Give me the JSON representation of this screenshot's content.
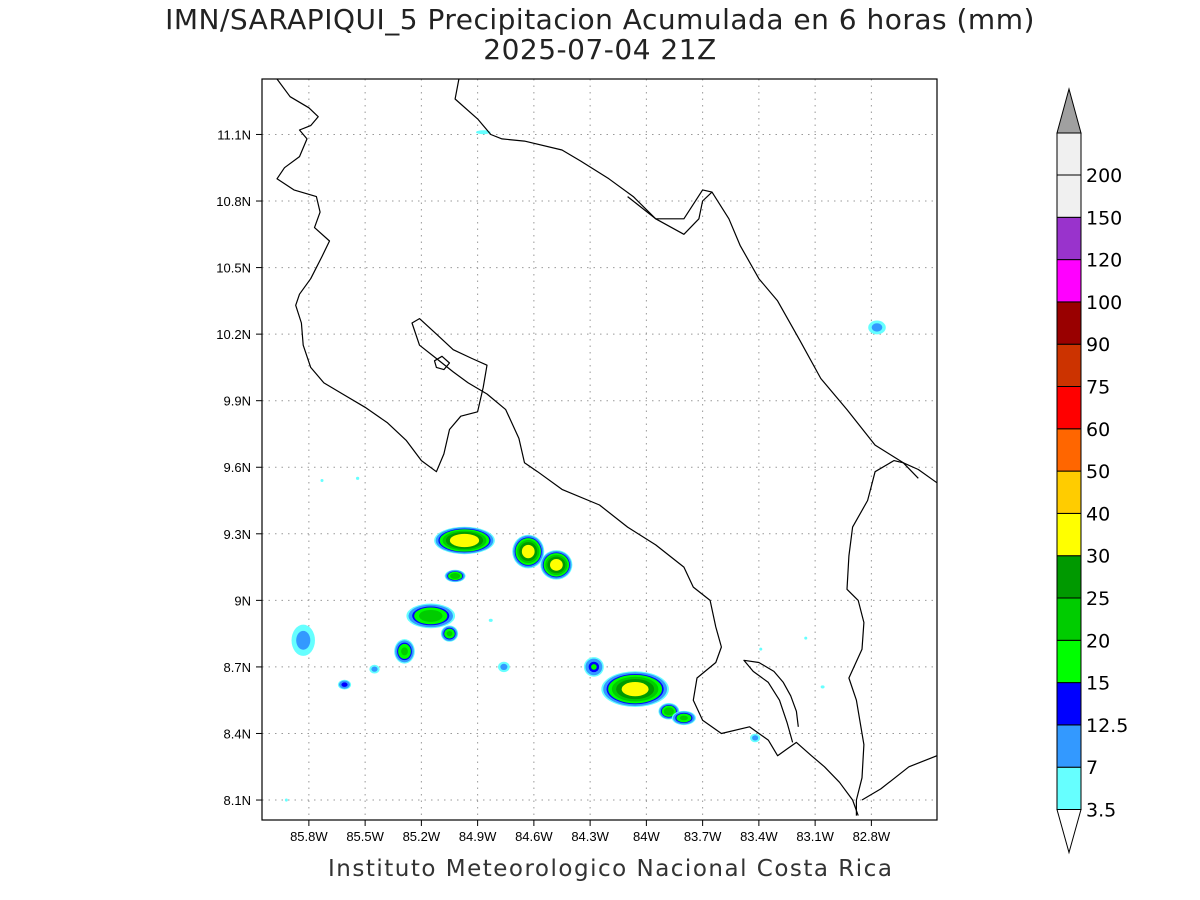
{
  "title": {
    "line1": "IMN/SARAPIQUI_5 Precipitacion Acumulada en 6 horas (mm)",
    "line2": "2025-07-04 21Z"
  },
  "footer": "Instituto Meteorologico Nacional Costa Rica",
  "map": {
    "lon_range": [
      -86.05,
      -82.45
    ],
    "lat_range": [
      8.01,
      11.35
    ],
    "x_ticks": [
      {
        "lon": -85.8,
        "label": "85.8W"
      },
      {
        "lon": -85.5,
        "label": "85.5W"
      },
      {
        "lon": -85.2,
        "label": "85.2W"
      },
      {
        "lon": -84.9,
        "label": "84.9W"
      },
      {
        "lon": -84.6,
        "label": "84.6W"
      },
      {
        "lon": -84.3,
        "label": "84.3W"
      },
      {
        "lon": -84.0,
        "label": "84W"
      },
      {
        "lon": -83.7,
        "label": "83.7W"
      },
      {
        "lon": -83.4,
        "label": "83.4W"
      },
      {
        "lon": -83.1,
        "label": "83.1W"
      },
      {
        "lon": -82.8,
        "label": "82.8W"
      }
    ],
    "y_ticks": [
      {
        "lat": 8.1,
        "label": "8.1N"
      },
      {
        "lat": 8.4,
        "label": "8.4N"
      },
      {
        "lat": 8.7,
        "label": "8.7N"
      },
      {
        "lat": 9.0,
        "label": "9N"
      },
      {
        "lat": 9.3,
        "label": "9.3N"
      },
      {
        "lat": 9.6,
        "label": "9.6N"
      },
      {
        "lat": 9.9,
        "label": "9.9N"
      },
      {
        "lat": 10.2,
        "label": "10.2N"
      },
      {
        "lat": 10.5,
        "label": "10.5N"
      },
      {
        "lat": 10.8,
        "label": "10.8N"
      },
      {
        "lat": 11.1,
        "label": "11.1N"
      }
    ],
    "grid": true,
    "coastline": [
      [
        -85.97,
        11.35
      ],
      [
        -85.9,
        11.27
      ],
      [
        -85.8,
        11.22
      ],
      [
        -85.75,
        11.18
      ],
      [
        -85.79,
        11.14
      ],
      [
        -85.85,
        11.12
      ],
      [
        -85.81,
        11.08
      ],
      [
        -85.85,
        11.0
      ],
      [
        -85.93,
        10.95
      ],
      [
        -85.97,
        10.9
      ],
      [
        -85.88,
        10.85
      ],
      [
        -85.76,
        10.82
      ],
      [
        -85.74,
        10.75
      ],
      [
        -85.77,
        10.68
      ],
      [
        -85.69,
        10.62
      ],
      [
        -85.73,
        10.55
      ],
      [
        -85.79,
        10.45
      ],
      [
        -85.85,
        10.38
      ],
      [
        -85.87,
        10.33
      ],
      [
        -85.84,
        10.25
      ],
      [
        -85.83,
        10.15
      ],
      [
        -85.79,
        10.05
      ],
      [
        -85.72,
        9.98
      ],
      [
        -85.62,
        9.93
      ],
      [
        -85.5,
        9.87
      ],
      [
        -85.38,
        9.8
      ],
      [
        -85.28,
        9.72
      ],
      [
        -85.2,
        9.63
      ],
      [
        -85.12,
        9.58
      ],
      [
        -85.08,
        9.66
      ],
      [
        -85.05,
        9.77
      ],
      [
        -84.99,
        9.83
      ],
      [
        -84.9,
        9.85
      ],
      [
        -84.87,
        9.96
      ],
      [
        -84.85,
        10.06
      ],
      [
        -84.93,
        10.09
      ],
      [
        -85.03,
        10.13
      ],
      [
        -85.12,
        10.2
      ],
      [
        -85.21,
        10.27
      ],
      [
        -85.25,
        10.25
      ],
      [
        -85.21,
        10.15
      ],
      [
        -85.12,
        10.09
      ],
      [
        -85.03,
        10.03
      ],
      [
        -84.95,
        9.98
      ],
      [
        -84.85,
        9.93
      ],
      [
        -84.75,
        9.86
      ],
      [
        -84.68,
        9.73
      ],
      [
        -84.65,
        9.62
      ],
      [
        -84.58,
        9.58
      ],
      [
        -84.45,
        9.5
      ],
      [
        -84.25,
        9.43
      ],
      [
        -84.1,
        9.33
      ],
      [
        -83.95,
        9.25
      ],
      [
        -83.8,
        9.15
      ],
      [
        -83.75,
        9.06
      ],
      [
        -83.66,
        9.0
      ],
      [
        -83.63,
        8.88
      ],
      [
        -83.6,
        8.79
      ],
      [
        -83.63,
        8.72
      ],
      [
        -83.73,
        8.65
      ],
      [
        -83.75,
        8.55
      ],
      [
        -83.7,
        8.46
      ],
      [
        -83.6,
        8.4
      ],
      [
        -83.45,
        8.43
      ],
      [
        -83.35,
        8.37
      ],
      [
        -83.3,
        8.3
      ],
      [
        -83.25,
        8.33
      ],
      [
        -83.2,
        8.36
      ],
      [
        -83.12,
        8.3
      ],
      [
        -83.05,
        8.25
      ],
      [
        -82.97,
        8.18
      ],
      [
        -82.9,
        8.1
      ],
      [
        -82.87,
        8.03
      ]
    ],
    "golfo_dulce": [
      [
        -83.22,
        8.36
      ],
      [
        -83.25,
        8.45
      ],
      [
        -83.29,
        8.55
      ],
      [
        -83.35,
        8.63
      ],
      [
        -83.43,
        8.68
      ],
      [
        -83.48,
        8.73
      ],
      [
        -83.4,
        8.72
      ],
      [
        -83.32,
        8.68
      ],
      [
        -83.27,
        8.63
      ],
      [
        -83.23,
        8.57
      ],
      [
        -83.2,
        8.5
      ],
      [
        -83.19,
        8.43
      ]
    ],
    "caribbean": [
      [
        -85.0,
        11.35
      ],
      [
        -85.02,
        11.26
      ],
      [
        -84.9,
        11.17
      ],
      [
        -84.83,
        11.1
      ],
      [
        -84.77,
        11.08
      ],
      [
        -84.65,
        11.07
      ],
      [
        -84.45,
        11.03
      ],
      [
        -84.35,
        10.98
      ],
      [
        -84.2,
        10.9
      ],
      [
        -84.07,
        10.82
      ],
      [
        -83.95,
        10.72
      ],
      [
        -83.8,
        10.65
      ],
      [
        -83.72,
        10.72
      ],
      [
        -83.7,
        10.8
      ],
      [
        -83.65,
        10.84
      ],
      [
        -83.56,
        10.72
      ],
      [
        -83.5,
        10.6
      ],
      [
        -83.4,
        10.45
      ],
      [
        -83.3,
        10.35
      ],
      [
        -83.18,
        10.17
      ],
      [
        -83.07,
        10.0
      ],
      [
        -82.93,
        9.86
      ],
      [
        -82.78,
        9.7
      ],
      [
        -82.63,
        9.62
      ],
      [
        -82.55,
        9.55
      ]
    ],
    "border_nic": [
      [
        -83.65,
        10.84
      ],
      [
        -83.7,
        10.85
      ],
      [
        -83.8,
        10.72
      ],
      [
        -83.95,
        10.72
      ],
      [
        -84.1,
        10.82
      ]
    ],
    "border_pan": [
      [
        -82.45,
        9.53
      ],
      [
        -82.55,
        9.59
      ],
      [
        -82.63,
        9.62
      ],
      [
        -82.68,
        9.63
      ],
      [
        -82.78,
        9.58
      ],
      [
        -82.82,
        9.45
      ],
      [
        -82.9,
        9.33
      ],
      [
        -82.92,
        9.2
      ],
      [
        -82.93,
        9.05
      ],
      [
        -82.87,
        9.0
      ],
      [
        -82.84,
        8.9
      ],
      [
        -82.85,
        8.78
      ],
      [
        -82.92,
        8.65
      ],
      [
        -82.88,
        8.55
      ],
      [
        -82.84,
        8.35
      ],
      [
        -82.85,
        8.2
      ],
      [
        -82.88,
        8.1
      ],
      [
        -82.88,
        8.03
      ]
    ],
    "panama_coast": [
      [
        -82.45,
        8.3
      ],
      [
        -82.6,
        8.25
      ],
      [
        -82.75,
        8.15
      ],
      [
        -82.85,
        8.1
      ]
    ],
    "nicoya_island": [
      [
        -85.13,
        10.08
      ],
      [
        -85.09,
        10.1
      ],
      [
        -85.05,
        10.07
      ],
      [
        -85.08,
        10.04
      ],
      [
        -85.12,
        10.05
      ]
    ]
  },
  "precip_cells": [
    {
      "lon": -84.97,
      "lat": 9.27,
      "rx": 0.17,
      "ry": 0.065,
      "value": 38
    },
    {
      "lon": -85.02,
      "lat": 9.11,
      "rx": 0.06,
      "ry": 0.03,
      "value": 25
    },
    {
      "lon": -84.63,
      "lat": 9.22,
      "rx": 0.09,
      "ry": 0.08,
      "value": 35
    },
    {
      "lon": -84.48,
      "lat": 9.16,
      "rx": 0.09,
      "ry": 0.07,
      "value": 35
    },
    {
      "lon": -85.15,
      "lat": 8.93,
      "rx": 0.14,
      "ry": 0.06,
      "value": 25
    },
    {
      "lon": -85.29,
      "lat": 8.77,
      "rx": 0.06,
      "ry": 0.06,
      "value": 22
    },
    {
      "lon": -85.05,
      "lat": 8.85,
      "rx": 0.05,
      "ry": 0.04,
      "value": 22
    },
    {
      "lon": -85.83,
      "lat": 8.82,
      "rx": 0.08,
      "ry": 0.09,
      "value": 9
    },
    {
      "lon": -85.61,
      "lat": 8.62,
      "rx": 0.04,
      "ry": 0.025,
      "value": 15
    },
    {
      "lon": -85.45,
      "lat": 8.69,
      "rx": 0.035,
      "ry": 0.025,
      "value": 9
    },
    {
      "lon": -84.76,
      "lat": 8.7,
      "rx": 0.04,
      "ry": 0.03,
      "value": 9
    },
    {
      "lon": -84.28,
      "lat": 8.7,
      "rx": 0.06,
      "ry": 0.05,
      "value": 16
    },
    {
      "lon": -84.06,
      "lat": 8.6,
      "rx": 0.19,
      "ry": 0.085,
      "value": 35
    },
    {
      "lon": -83.88,
      "lat": 8.5,
      "rx": 0.06,
      "ry": 0.04,
      "value": 25
    },
    {
      "lon": -83.8,
      "lat": 8.47,
      "rx": 0.07,
      "ry": 0.035,
      "value": 22
    },
    {
      "lon": -83.42,
      "lat": 8.38,
      "rx": 0.035,
      "ry": 0.025,
      "value": 9
    },
    {
      "lon": -82.77,
      "lat": 10.23,
      "rx": 0.06,
      "ry": 0.04,
      "value": 9
    },
    {
      "lon": -84.87,
      "lat": 11.11,
      "rx": 0.11,
      "ry": 0.025,
      "value": 4
    },
    {
      "lon": -85.54,
      "lat": 9.55,
      "rx": 0.025,
      "ry": 0.02,
      "value": 4
    },
    {
      "lon": -85.73,
      "lat": 9.54,
      "rx": 0.02,
      "ry": 0.015,
      "value": 4
    },
    {
      "lon": -83.06,
      "lat": 8.61,
      "rx": 0.03,
      "ry": 0.02,
      "value": 4
    },
    {
      "lon": -84.83,
      "lat": 8.91,
      "rx": 0.03,
      "ry": 0.02,
      "value": 4
    },
    {
      "lon": -83.39,
      "lat": 8.78,
      "rx": 0.02,
      "ry": 0.018,
      "value": 4
    },
    {
      "lon": -83.15,
      "lat": 8.83,
      "rx": 0.018,
      "ry": 0.018,
      "value": 4
    },
    {
      "lon": -85.92,
      "lat": 8.1,
      "rx": 0.02,
      "ry": 0.02,
      "value": 4
    }
  ],
  "colorbar": {
    "levels": [
      {
        "label": "3.5",
        "color": "#ffffff"
      },
      {
        "label": "7",
        "color": "#66ffff"
      },
      {
        "label": "12.5",
        "color": "#3399ff"
      },
      {
        "label": "15",
        "color": "#0000ff"
      },
      {
        "label": "20",
        "color": "#00ff00"
      },
      {
        "label": "25",
        "color": "#00cc00"
      },
      {
        "label": "30",
        "color": "#009900"
      },
      {
        "label": "40",
        "color": "#ffff00"
      },
      {
        "label": "50",
        "color": "#ffcc00"
      },
      {
        "label": "60",
        "color": "#ff6600"
      },
      {
        "label": "75",
        "color": "#ff0000"
      },
      {
        "label": "90",
        "color": "#cc3300"
      },
      {
        "label": "100",
        "color": "#990000"
      },
      {
        "label": "120",
        "color": "#ff00ff"
      },
      {
        "label": "150",
        "color": "#9933cc"
      },
      {
        "label": "200",
        "color": "#f0f0f0"
      }
    ],
    "top_arrow_color": "#a0a0a0",
    "bottom_arrow_color": "#ffffff"
  }
}
